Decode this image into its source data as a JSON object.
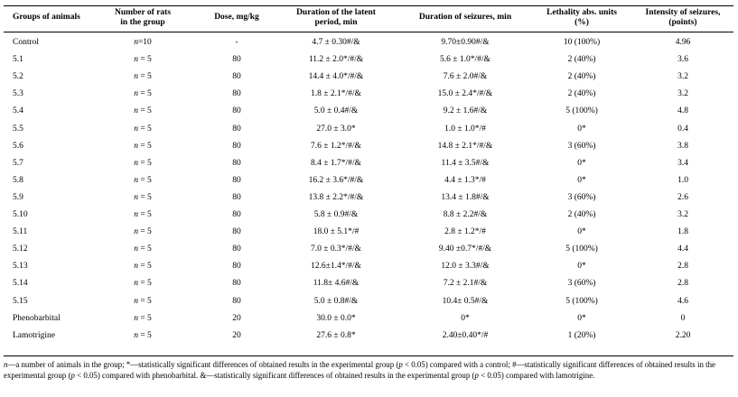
{
  "table": {
    "headers": {
      "group": "Groups of animals",
      "rats_line1": "Number of rats",
      "rats_line2": "in the group",
      "dose": "Dose, mg/kg",
      "latent_line1": "Duration of the latent",
      "latent_line2": "period, min",
      "seizures": "Duration of seizures, min",
      "lethality_line1": "Lethality abs. units",
      "lethality_line2": "(%)",
      "intensity_line1": "Intensity of seizures,",
      "intensity_line2": "(points)"
    },
    "rows": [
      {
        "group": "Control",
        "n_label": "n",
        "n_value": "=10",
        "dose": "-",
        "latent": "4.7 ± 0.30#/&",
        "seizures": "9.70±0.90#/&",
        "lethality": "10 (100%)",
        "intensity": "4.96"
      },
      {
        "group": "5.1",
        "n_label": "n",
        "n_value": " = 5",
        "dose": "80",
        "latent": "11.2 ± 2.0*/#/&",
        "seizures": "5.6 ± 1.0*/#/&",
        "lethality": "2 (40%)",
        "intensity": "3.6"
      },
      {
        "group": "5.2",
        "n_label": "n",
        "n_value": " = 5",
        "dose": "80",
        "latent": "14.4 ± 4.0*/#/&",
        "seizures": "7.6 ± 2.0#/&",
        "lethality": "2 (40%)",
        "intensity": "3.2"
      },
      {
        "group": "5.3",
        "n_label": "n",
        "n_value": " = 5",
        "dose": "80",
        "latent": "1.8 ± 2.1*/#/&",
        "seizures": "15.0 ± 2.4*/#/&",
        "lethality": "2 (40%)",
        "intensity": "3.2"
      },
      {
        "group": "5.4",
        "n_label": "n",
        "n_value": " = 5",
        "dose": "80",
        "latent": "5.0 ± 0.4#/&",
        "seizures": "9.2 ± 1.6#/&",
        "lethality": "5 (100%)",
        "intensity": "4.8"
      },
      {
        "group": "5.5",
        "n_label": "n",
        "n_value": " = 5",
        "dose": "80",
        "latent": "27.0 ± 3.0*",
        "seizures": "1.0 ± 1.0*/#",
        "lethality": "0*",
        "intensity": "0.4"
      },
      {
        "group": "5.6",
        "n_label": "n",
        "n_value": " = 5",
        "dose": "80",
        "latent": "7.6 ± 1.2*/#/&",
        "seizures": "14.8 ± 2.1*/#/&",
        "lethality": "3 (60%)",
        "intensity": "3.8"
      },
      {
        "group": "5.7",
        "n_label": "n",
        "n_value": " = 5",
        "dose": "80",
        "latent": "8.4 ± 1.7*/#/&",
        "seizures": "11.4 ± 3.5#/&",
        "lethality": "0*",
        "intensity": "3.4"
      },
      {
        "group": "5.8",
        "n_label": "n",
        "n_value": " = 5",
        "dose": "80",
        "latent": "16.2 ± 3.6*/#/&",
        "seizures": "4.4 ± 1.3*/#",
        "lethality": "0*",
        "intensity": "1.0"
      },
      {
        "group": "5.9",
        "n_label": "n",
        "n_value": " = 5",
        "dose": "80",
        "latent": "13.8 ± 2.2*/#/&",
        "seizures": "13.4 ± 1.8#/&",
        "lethality": "3 (60%)",
        "intensity": "2.6"
      },
      {
        "group": "5.10",
        "n_label": "n",
        "n_value": " = 5",
        "dose": "80",
        "latent": "5.8 ± 0.9#/&",
        "seizures": "8.8 ± 2.2#/&",
        "lethality": "2 (40%)",
        "intensity": "3.2"
      },
      {
        "group": "5.11",
        "n_label": "n",
        "n_value": " = 5",
        "dose": "80",
        "latent": "18.0 ± 5.1*/#",
        "seizures": "2.8 ± 1.2*/#",
        "lethality": "0*",
        "intensity": "1.8"
      },
      {
        "group": "5.12",
        "n_label": "n",
        "n_value": " = 5",
        "dose": "80",
        "latent": "7.0 ± 0.3*/#/&",
        "seizures": "9.40 ±0.7*/#/&",
        "lethality": "5 (100%)",
        "intensity": "4.4"
      },
      {
        "group": "5.13",
        "n_label": "n",
        "n_value": " = 5",
        "dose": "80",
        "latent": "12.6±1.4*/#/&",
        "seizures": "12.0 ± 3.3#/&",
        "lethality": "0*",
        "intensity": "2.8"
      },
      {
        "group": "5.14",
        "n_label": "n",
        "n_value": " = 5",
        "dose": "80",
        "latent": "11.8± 4.6#/&",
        "seizures": "7.2 ± 2.1#/&",
        "lethality": "3 (60%)",
        "intensity": "2.8"
      },
      {
        "group": "5.15",
        "n_label": "n",
        "n_value": " = 5",
        "dose": "80",
        "latent": "5.0 ± 0.8#/&",
        "seizures": "10.4± 0.5#/&",
        "lethality": "5 (100%)",
        "intensity": "4.6"
      },
      {
        "group": "Phenobarbital",
        "n_label": "n",
        "n_value": " = 5",
        "dose": "20",
        "latent": "30.0 ± 0.0*",
        "seizures": "0*",
        "lethality": "0*",
        "intensity": "0"
      },
      {
        "group": "Lamotrigine",
        "n_label": "n",
        "n_value": " = 5",
        "dose": "20",
        "latent": "27.6 ± 0.8*",
        "seizures": "2.40±0.40*/#",
        "lethality": "1 (20%)",
        "intensity": "2.20"
      }
    ]
  },
  "footnote": {
    "n_symbol": "n",
    "part1": "—a number of animals in the group; *—statistically significant differences of obtained results in the experimental group (",
    "p_symbol": "p",
    "part2": " < 0.05) compared with a control; #—statistically significant differences of obtained results in the experimental group (",
    "part3": " < 0.05) compared with phenobarbital. &—statistically significant differences of obtained results in the experimental group (",
    "part4": " < 0.05) compared with lamotrigine."
  }
}
